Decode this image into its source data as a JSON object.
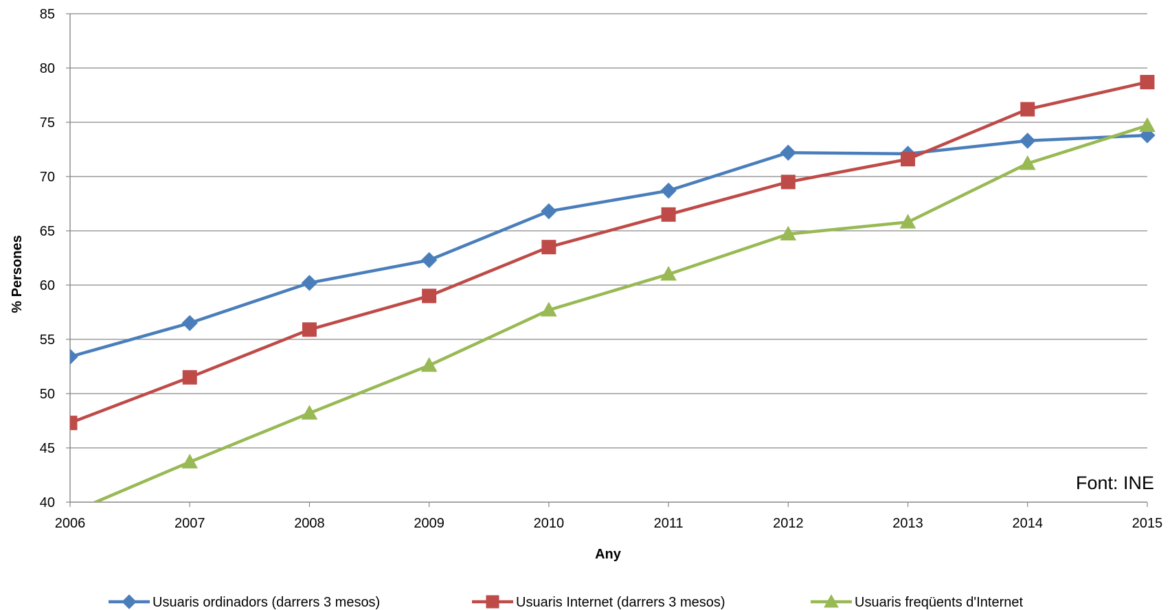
{
  "chart_data": {
    "type": "line",
    "title": "",
    "xlabel": "Any",
    "ylabel": "% Persones",
    "ylim": [
      40,
      85
    ],
    "yticks": [
      40,
      45,
      50,
      55,
      60,
      65,
      70,
      75,
      80,
      85
    ],
    "x": [
      2006,
      2007,
      2008,
      2009,
      2010,
      2011,
      2012,
      2013,
      2014,
      2015
    ],
    "grid": "horizontal",
    "legend_position": "bottom",
    "annotation": "Font: INE",
    "series": [
      {
        "name": "Usuaris ordinadors (darrers 3 mesos)",
        "marker": "diamond",
        "color": "#4A7EBB",
        "values": [
          53.4,
          56.5,
          60.2,
          62.3,
          66.8,
          68.7,
          72.2,
          72.1,
          73.3,
          73.8
        ]
      },
      {
        "name": "Usuaris Internet (darrers 3 mesos)",
        "marker": "square",
        "color": "#BE4B48",
        "values": [
          47.3,
          51.5,
          55.9,
          59.0,
          63.5,
          66.5,
          69.5,
          71.6,
          76.2,
          78.7
        ]
      },
      {
        "name": "Usuaris freqüents d'Internet",
        "marker": "triangle",
        "color": "#98B954",
        "values": [
          39.0,
          43.7,
          48.2,
          52.6,
          57.7,
          61.0,
          64.7,
          65.8,
          71.2,
          74.7
        ]
      }
    ]
  }
}
